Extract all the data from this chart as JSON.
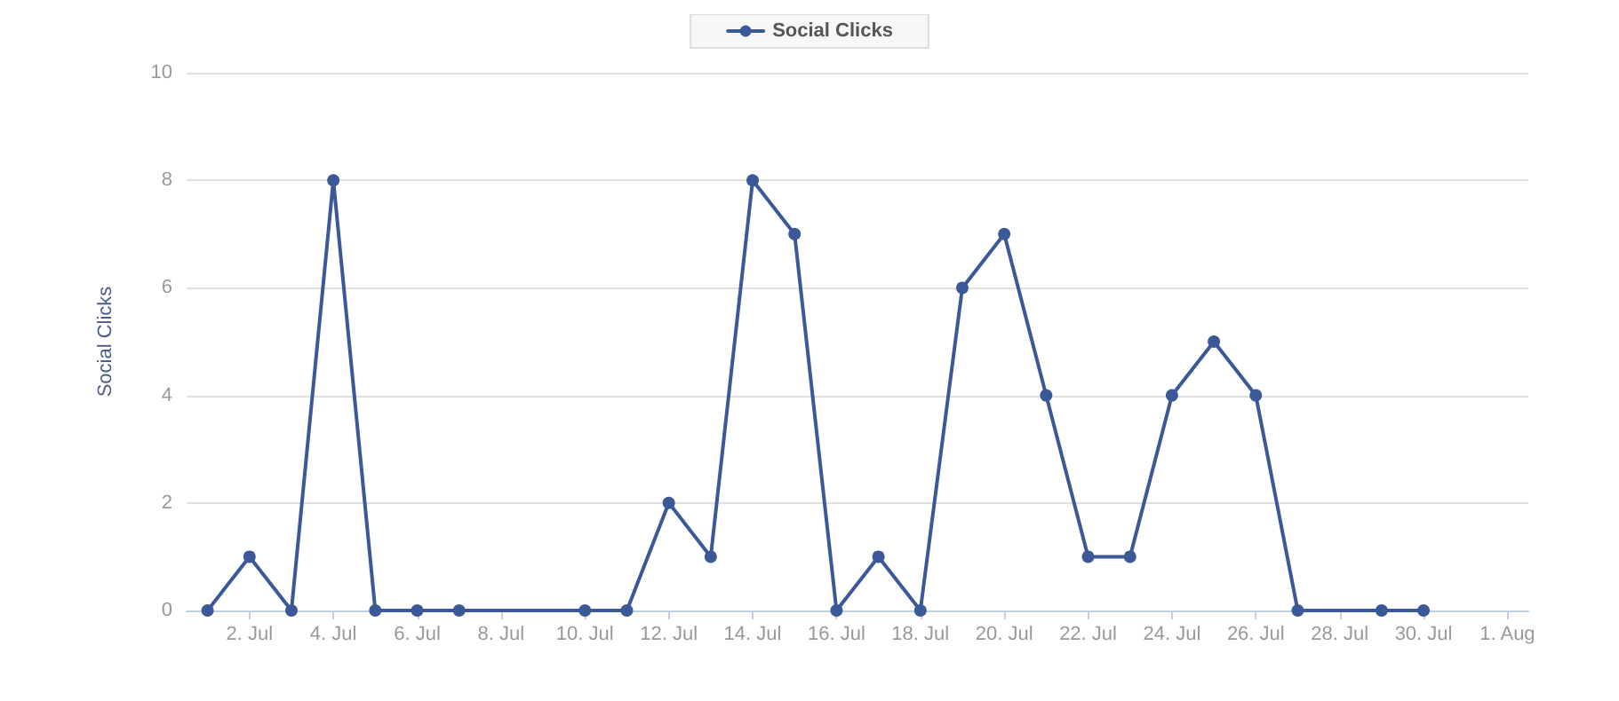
{
  "chart_data": {
    "type": "line",
    "ylabel": "Social Clicks",
    "categories": [
      null,
      "2. Jul",
      null,
      "4. Jul",
      null,
      "6. Jul",
      null,
      "8. Jul",
      null,
      "10. Jul",
      null,
      "12. Jul",
      null,
      "14. Jul",
      null,
      "16. Jul",
      null,
      "18. Jul",
      null,
      "20. Jul",
      null,
      "22. Jul",
      null,
      "24. Jul",
      null,
      "26. Jul",
      null,
      "28. Jul",
      null,
      "30. Jul",
      null,
      "1. Aug"
    ],
    "series": [
      {
        "name": "Social Clicks",
        "color": "#3b5998",
        "values": [
          0,
          1,
          0,
          8,
          0,
          0,
          0,
          null,
          null,
          0,
          0,
          2,
          1,
          8,
          7,
          0,
          1,
          0,
          6,
          7,
          4,
          1,
          1,
          4,
          5,
          4,
          0,
          null,
          0,
          0,
          null,
          null
        ]
      }
    ],
    "ylim": [
      0,
      10
    ],
    "yticks": [
      0,
      2,
      4,
      6,
      8,
      10
    ],
    "grid": "y",
    "legend": "top",
    "marker": "circle",
    "line_style": "solid"
  }
}
